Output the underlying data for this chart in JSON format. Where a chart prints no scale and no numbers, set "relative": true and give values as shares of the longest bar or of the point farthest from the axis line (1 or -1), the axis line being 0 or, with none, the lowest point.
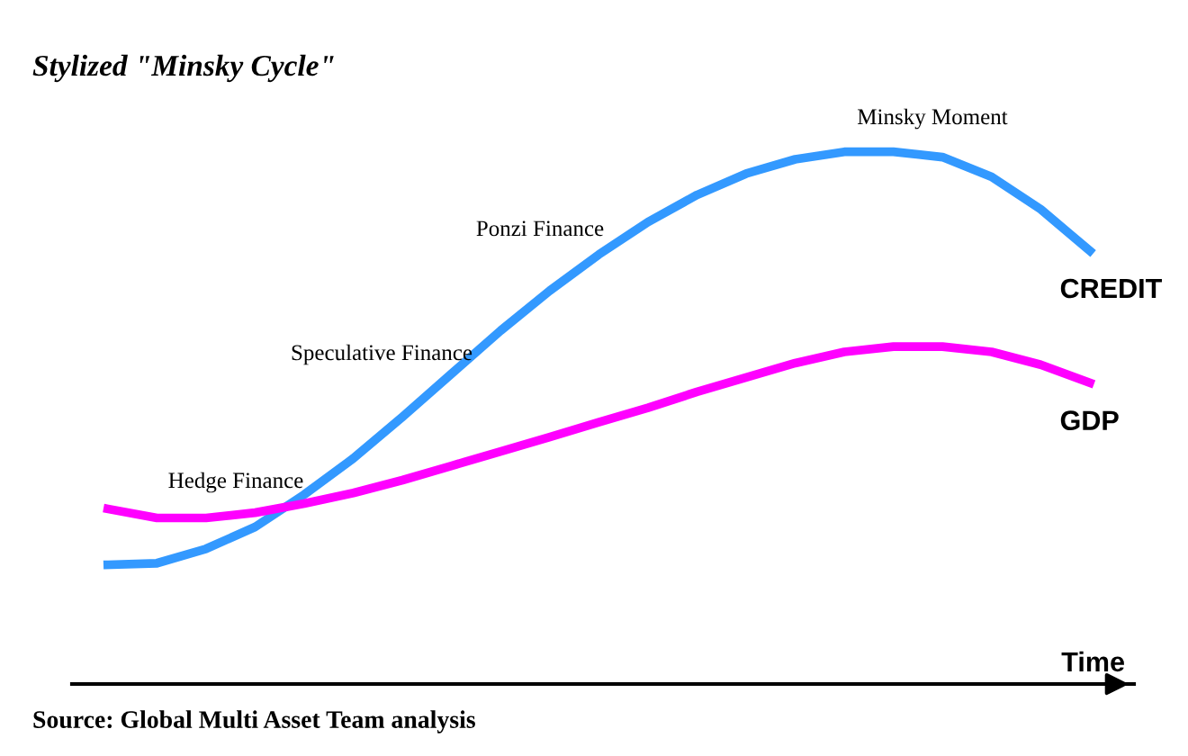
{
  "chart_data": {
    "type": "line",
    "relative": true,
    "title": "Stylized \"Minsky Cycle\"",
    "xlabel": "Time",
    "categories": [
      null,
      null,
      null,
      null,
      null,
      null,
      null,
      null,
      null,
      null,
      null,
      null,
      null,
      null,
      null,
      null,
      null,
      null,
      null,
      null,
      null
    ],
    "series": [
      {
        "name": "CREDIT",
        "color": "#3399ff",
        "values": [
          0.224,
          0.227,
          0.254,
          0.295,
          0.356,
          0.424,
          0.502,
          0.583,
          0.664,
          0.739,
          0.807,
          0.868,
          0.919,
          0.959,
          0.986,
          1,
          1,
          0.99,
          0.953,
          0.892,
          0.814
        ]
      },
      {
        "name": "GDP",
        "color": "#ff00ff",
        "values": [
          0.329,
          0.312,
          0.312,
          0.322,
          0.339,
          0.359,
          0.383,
          0.41,
          0.437,
          0.464,
          0.492,
          0.519,
          0.549,
          0.576,
          0.603,
          0.624,
          0.634,
          0.634,
          0.624,
          0.6,
          0.566
        ]
      }
    ],
    "annotations": [
      "Hedge Finance",
      "Speculative Finance",
      "Ponzi Finance",
      "Minsky Moment",
      "Source: Global Multi Asset Team analysis"
    ],
    "legend": false,
    "grid": false,
    "marker": "none",
    "line_style": "solid"
  }
}
